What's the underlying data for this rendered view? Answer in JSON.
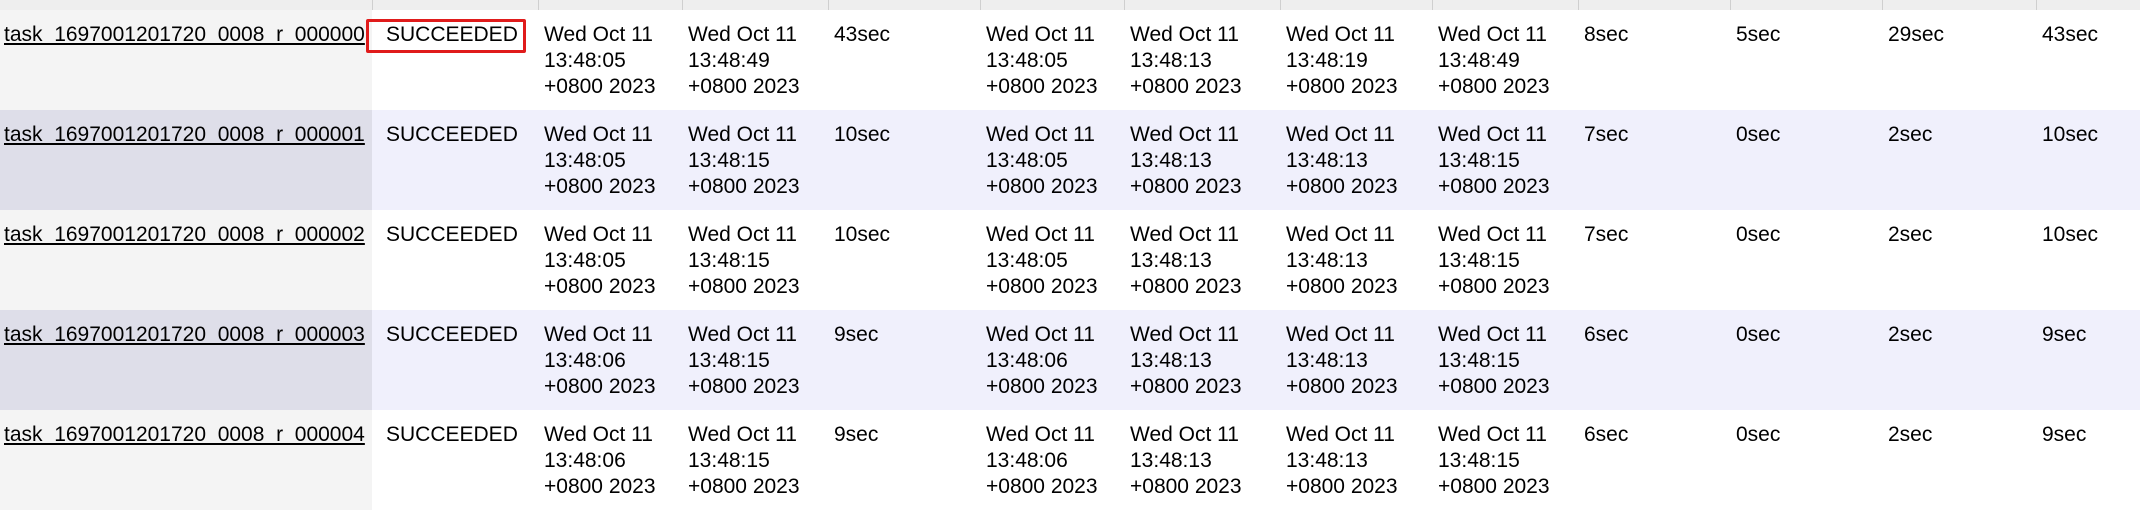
{
  "colors": {
    "highlight": "#e01b1b",
    "row_alt": "#f0f0fc",
    "name_cell": "#f4f4f4",
    "name_cell_alt": "#dedee9"
  },
  "rows": [
    {
      "name": "task_1697001201720_0008_r_000000",
      "state": "SUCCEEDED",
      "start_time": "Wed Oct 11 13:48:05 +0800 2023",
      "finish_time": "Wed Oct 11 13:48:49 +0800 2023",
      "elapsed": "43sec",
      "shuffle_start": "Wed Oct 11 13:48:05 +0800 2023",
      "shuffle_finish": "Wed Oct 11 13:48:13 +0800 2023",
      "merge_finish": "Wed Oct 11 13:48:19 +0800 2023",
      "attempt_finish": "Wed Oct 11 13:48:49 +0800 2023",
      "shuffle_time": "8sec",
      "merge_time": "5sec",
      "reduce_time": "29sec",
      "total_time": "43sec"
    },
    {
      "name": "task_1697001201720_0008_r_000001",
      "state": "SUCCEEDED",
      "start_time": "Wed Oct 11 13:48:05 +0800 2023",
      "finish_time": "Wed Oct 11 13:48:15 +0800 2023",
      "elapsed": "10sec",
      "shuffle_start": "Wed Oct 11 13:48:05 +0800 2023",
      "shuffle_finish": "Wed Oct 11 13:48:13 +0800 2023",
      "merge_finish": "Wed Oct 11 13:48:13 +0800 2023",
      "attempt_finish": "Wed Oct 11 13:48:15 +0800 2023",
      "shuffle_time": "7sec",
      "merge_time": "0sec",
      "reduce_time": "2sec",
      "total_time": "10sec"
    },
    {
      "name": "task_1697001201720_0008_r_000002",
      "state": "SUCCEEDED",
      "start_time": "Wed Oct 11 13:48:05 +0800 2023",
      "finish_time": "Wed Oct 11 13:48:15 +0800 2023",
      "elapsed": "10sec",
      "shuffle_start": "Wed Oct 11 13:48:05 +0800 2023",
      "shuffle_finish": "Wed Oct 11 13:48:13 +0800 2023",
      "merge_finish": "Wed Oct 11 13:48:13 +0800 2023",
      "attempt_finish": "Wed Oct 11 13:48:15 +0800 2023",
      "shuffle_time": "7sec",
      "merge_time": "0sec",
      "reduce_time": "2sec",
      "total_time": "10sec"
    },
    {
      "name": "task_1697001201720_0008_r_000003",
      "state": "SUCCEEDED",
      "start_time": "Wed Oct 11 13:48:06 +0800 2023",
      "finish_time": "Wed Oct 11 13:48:15 +0800 2023",
      "elapsed": "9sec",
      "shuffle_start": "Wed Oct 11 13:48:06 +0800 2023",
      "shuffle_finish": "Wed Oct 11 13:48:13 +0800 2023",
      "merge_finish": "Wed Oct 11 13:48:13 +0800 2023",
      "attempt_finish": "Wed Oct 11 13:48:15 +0800 2023",
      "shuffle_time": "6sec",
      "merge_time": "0sec",
      "reduce_time": "2sec",
      "total_time": "9sec"
    },
    {
      "name": "task_1697001201720_0008_r_000004",
      "state": "SUCCEEDED",
      "start_time": "Wed Oct 11 13:48:06 +0800 2023",
      "finish_time": "Wed Oct 11 13:48:15 +0800 2023",
      "elapsed": "9sec",
      "shuffle_start": "Wed Oct 11 13:48:06 +0800 2023",
      "shuffle_finish": "Wed Oct 11 13:48:13 +0800 2023",
      "merge_finish": "Wed Oct 11 13:48:13 +0800 2023",
      "attempt_finish": "Wed Oct 11 13:48:15 +0800 2023",
      "shuffle_time": "6sec",
      "merge_time": "0sec",
      "reduce_time": "2sec",
      "total_time": "9sec"
    }
  ]
}
